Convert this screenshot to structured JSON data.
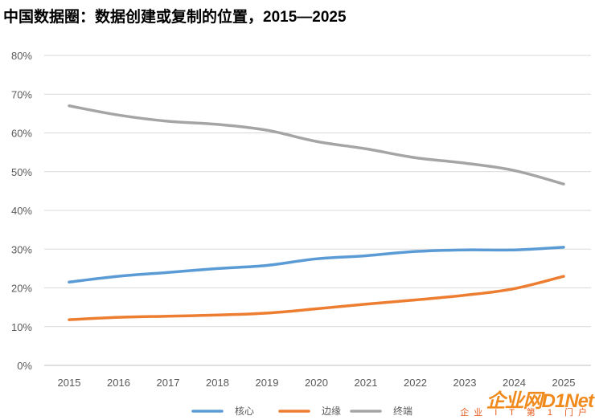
{
  "chart_data": {
    "type": "line",
    "title": "中国数据圈：数据创建或复制的位置，2015—2025",
    "categories": [
      "2015",
      "2016",
      "2017",
      "2018",
      "2019",
      "2020",
      "2021",
      "2022",
      "2023",
      "2024",
      "2025"
    ],
    "yticks": [
      "0%",
      "10%",
      "20%",
      "30%",
      "40%",
      "50%",
      "60%",
      "70%",
      "80%"
    ],
    "ylim": [
      0,
      80
    ],
    "grid": true,
    "legend_position": "bottom",
    "series": [
      {
        "name": "核心",
        "color": "#5b9bd5",
        "values": [
          21.5,
          23,
          24,
          25,
          25.8,
          27.5,
          28.3,
          29.4,
          29.8,
          29.8,
          30.5
        ]
      },
      {
        "name": "边缘",
        "color": "#ed7d31",
        "values": [
          11.8,
          12.4,
          12.7,
          13,
          13.5,
          14.6,
          15.8,
          16.9,
          18.1,
          19.8,
          23
        ]
      },
      {
        "name": "终端",
        "color": "#a5a5a5",
        "values": [
          67,
          64.6,
          63,
          62.2,
          60.7,
          57.8,
          55.9,
          53.6,
          52.2,
          50.3,
          46.8
        ]
      }
    ]
  },
  "watermark": {
    "main": "企业网D1Net",
    "sub": "企业 I T 第 1 门户"
  }
}
